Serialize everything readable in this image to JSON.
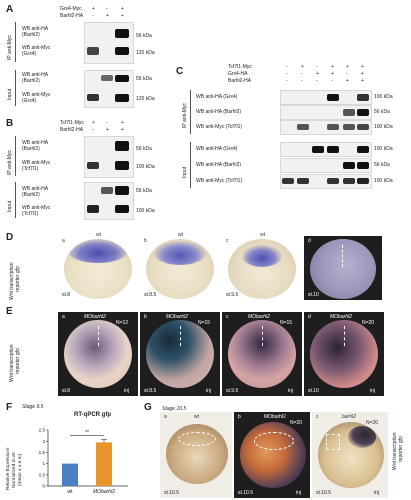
{
  "panels": {
    "A": {
      "label": "A",
      "rows": [
        {
          "name": "Grx4-Myc",
          "values": [
            "+",
            "-",
            "+"
          ]
        },
        {
          "name": "Barhl2-HA",
          "values": [
            "-",
            "+",
            "+"
          ]
        }
      ],
      "ip_label": "IP anti-Myc",
      "input_label": "Input",
      "blots": [
        {
          "label_line1": "WB anti-HA",
          "label_line2": "(Barhl2)",
          "kda": "56 kDa"
        },
        {
          "label_line1": "WB anti-Myc",
          "label_line2": "(Grx4)",
          "kda": "120 kDa"
        },
        {
          "label_line1": "WB anti-HA",
          "label_line2": "(Barhl2)",
          "kda": "56 kDa"
        },
        {
          "label_line1": "WB anti-Myc",
          "label_line2": "(Grx4)",
          "kda": "120 kDa"
        }
      ]
    },
    "B": {
      "label": "B",
      "rows": [
        {
          "name": "Tcf7l1-Myc",
          "values": [
            "+",
            "-",
            "+"
          ]
        },
        {
          "name": "Barhl2-HA",
          "values": [
            "-",
            "+",
            "+"
          ]
        }
      ],
      "ip_label": "IP anti-Myc",
      "input_label": "Input",
      "blots": [
        {
          "label_line1": "WB anti-HA",
          "label_line2": "(Barhl2)",
          "kda": "56 kDa"
        },
        {
          "label_line1": "WB anti-Myc",
          "label_line2": "(Tcf7l1)",
          "kda": "100 kDa"
        },
        {
          "label_line1": "WB anti-HA",
          "label_line2": "(Barhl2)",
          "kda": "56 kDa"
        },
        {
          "label_line1": "WB anti-Myc",
          "label_line2": "(Tcf7l1)",
          "kda": "100 kDa"
        }
      ]
    },
    "C": {
      "label": "C",
      "rows": [
        {
          "name": "Tcf7l1-Myc",
          "values": [
            "-",
            "+",
            "-",
            "+",
            "+",
            "+"
          ]
        },
        {
          "name": "Grx4-HA",
          "values": [
            "-",
            "-",
            "+",
            "+",
            "-",
            "+"
          ]
        },
        {
          "name": "Barhl2-HA",
          "values": [
            "-",
            "-",
            "-",
            "-",
            "+",
            "+"
          ]
        }
      ],
      "ip_label": "IP anti-Myc",
      "input_label": "Input",
      "blots": [
        {
          "label": "WB anti-HA (Grx4)",
          "kda": "100 kDa"
        },
        {
          "label": "WB anti-HA (Barhl2)",
          "kda": "56 kDa"
        },
        {
          "label": "WB anti-Myc (Tcf7l1)",
          "kda": "100 kDa"
        },
        {
          "label": "WB anti-HA (Grx4)",
          "kda": "100 kDa"
        },
        {
          "label": "WB anti-HA (Barhl2)",
          "kda": "56 kDa"
        },
        {
          "label": "WB anti-Myc (Tcf7l1)",
          "kda": "100 kDa"
        }
      ]
    },
    "D": {
      "label": "D",
      "side_label_1": "Wnt transcription",
      "side_label_2": "reporter gfp",
      "embryos": [
        {
          "letter": "a",
          "top": "wt",
          "stage": "st.8"
        },
        {
          "letter": "b",
          "top": "wt",
          "stage": "st.8.5"
        },
        {
          "letter": "c",
          "top": "wt",
          "stage": "st.9.5"
        },
        {
          "letter": "d",
          "top": "wt",
          "stage": "st.10"
        }
      ]
    },
    "E": {
      "label": "E",
      "side_label_1": "Wnt transcription",
      "side_label_2": "reporter gfp",
      "embryos": [
        {
          "letter": "a",
          "top": "MObarhl2",
          "n": "N=12",
          "stage": "st.8",
          "inj": "inj"
        },
        {
          "letter": "b",
          "top": "MObarhl2",
          "n": "N=15",
          "stage": "st.8.5",
          "inj": "inj"
        },
        {
          "letter": "c",
          "top": "MObarhl2",
          "n": "N=15",
          "stage": "st.9.5",
          "inj": "inj"
        },
        {
          "letter": "d",
          "top": "MObarhl2",
          "n": "N=20",
          "stage": "st.10",
          "inj": "inj"
        }
      ]
    },
    "F": {
      "label": "F",
      "stage": "Stage 9.5",
      "title": "RT-qPCR gfp",
      "ylabel_1": "Relative Expression",
      "ylabel_2": "Normalized to wt",
      "ylabel_3": "(mean ± s.e.m)",
      "significance": "**",
      "yticks": [
        "0",
        "0.5",
        "1",
        "1.5",
        "2",
        "2.5"
      ]
    },
    "G": {
      "label": "G",
      "stage": "Stage 10.5",
      "side_label_1": "Wnt transcription",
      "side_label_2": "reporter gfp",
      "embryos": [
        {
          "letter": "a",
          "top": "wt",
          "stage": "st.10.5"
        },
        {
          "letter": "b",
          "top": "MObarhl2",
          "n": "N=20",
          "stage": "st.10.5",
          "inj": "inj"
        },
        {
          "letter": "c",
          "top": "barhl2",
          "n": "N=20",
          "stage": "st.10.5",
          "inj": "inj"
        }
      ]
    }
  },
  "chart_data": {
    "type": "bar",
    "title": "RT-qPCR gfp",
    "categories": [
      "wt",
      "MObarhl2"
    ],
    "values": [
      1.0,
      1.95
    ],
    "errors": [
      0.0,
      0.12
    ],
    "colors": [
      "#4a7fc1",
      "#e8952a"
    ],
    "ylim": [
      0,
      2.5
    ],
    "ylabel": "Relative Expression Normalized to wt (mean ± s.e.m)",
    "significance": "**"
  }
}
